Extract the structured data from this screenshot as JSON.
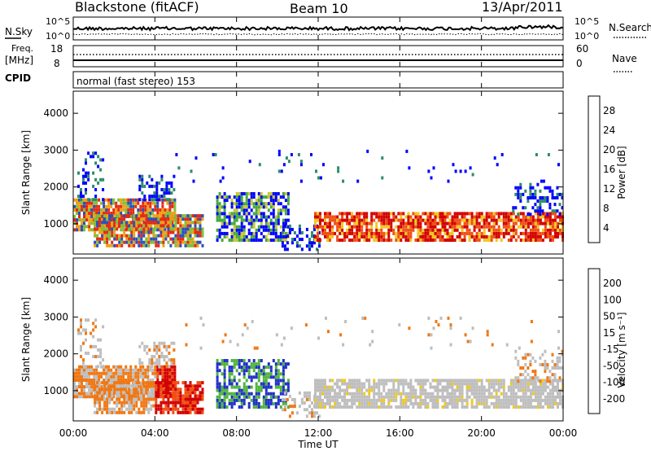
{
  "header": {
    "station": "Blackstone (fitACF)",
    "beam": "Beam 10",
    "date": "13/Apr/2011"
  },
  "noise_panel": {
    "left_label": "N.Sky",
    "left_ticks": [
      "10^5",
      "10^0"
    ],
    "right_label": "N.Search",
    "right_ticks": [
      "10^5",
      "10^0"
    ]
  },
  "freq_panel": {
    "left_label_line1": "Freq.",
    "left_label_line2": "[MHz]",
    "left_ticks": [
      "18",
      "8"
    ],
    "right_label": "Nave",
    "right_ticks": [
      "60",
      "0"
    ]
  },
  "cpid_panel": {
    "label": "CPID",
    "text": "normal (fast stereo) 153"
  },
  "chart_data": [
    {
      "type": "heatmap",
      "name": "power",
      "ylabel": "Slant Range [km]",
      "xlabel": "Time UT",
      "ylim": [
        180,
        4600
      ],
      "y_ticks": [
        "1000",
        "2000",
        "3000",
        "4000"
      ],
      "x_ticks": [
        "00:00",
        "04:00",
        "08:00",
        "12:00",
        "16:00",
        "20:00",
        "00:00"
      ],
      "colorbar": {
        "label": "Power [dB]",
        "ticks": [
          "28",
          "24",
          "20",
          "16",
          "12",
          "8",
          "4"
        ],
        "colors": [
          "#0000ff",
          "#2a4fbf",
          "#2e8c6a",
          "#43a83f",
          "#7fbf3a",
          "#c8c832",
          "#f0c81e",
          "#f0a014",
          "#f07814",
          "#f05014",
          "#e62814",
          "#d20000"
        ]
      }
    },
    {
      "type": "heatmap",
      "name": "velocity",
      "ylabel": "Slant Range [km]",
      "xlabel": "Time UT",
      "ylim": [
        180,
        4600
      ],
      "y_ticks": [
        "1000",
        "2000",
        "3000",
        "4000"
      ],
      "x_ticks": [
        "00:00",
        "04:00",
        "08:00",
        "12:00",
        "16:00",
        "20:00",
        "00:00"
      ],
      "colorbar": {
        "label": "Velocity [m s⁻¹]",
        "ticks": [
          "200",
          "100",
          "50",
          "15",
          "-15",
          "-50",
          "-100",
          "-200"
        ],
        "colors": [
          "#2030c8",
          "#3c50d2",
          "#2e7a4a",
          "#50b43c",
          "#7fd24a",
          "#bebebe",
          "#bebebe",
          "#f0c81e",
          "#f0a014",
          "#f07814",
          "#f05014",
          "#e62814",
          "#d20000"
        ]
      }
    }
  ],
  "axis": {
    "time_label": "Time UT"
  }
}
